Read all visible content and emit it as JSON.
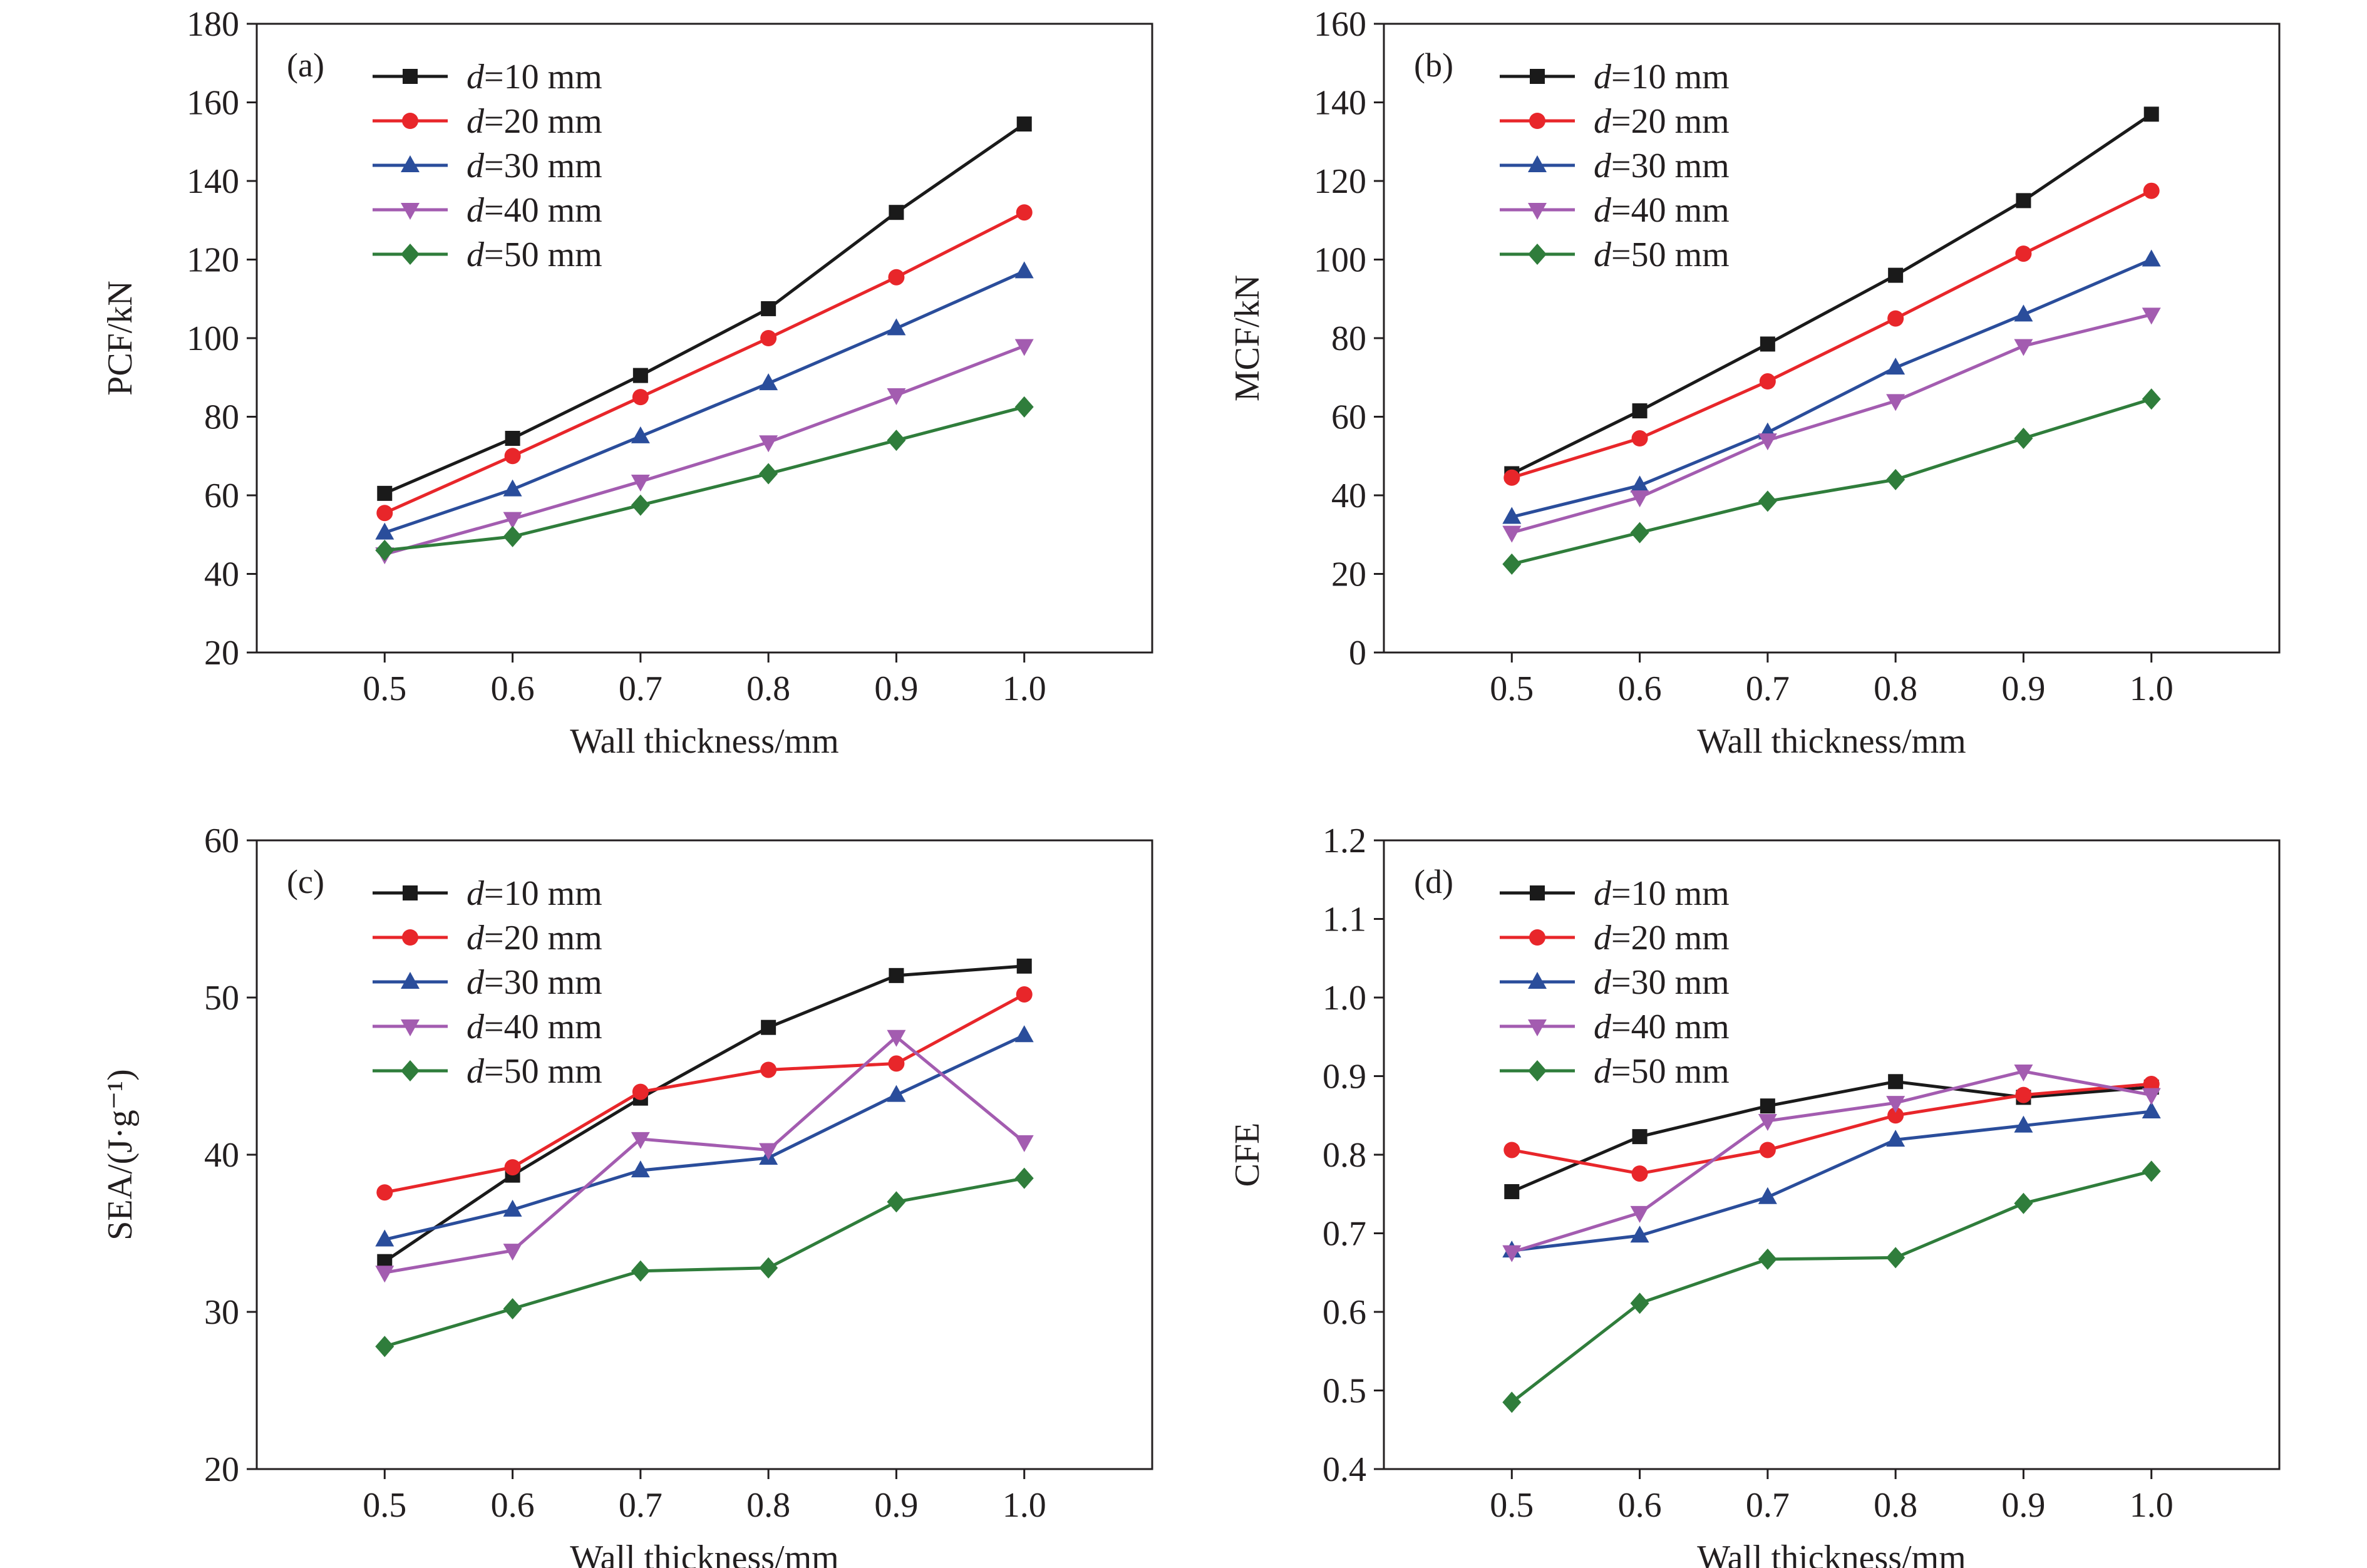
{
  "figure": {
    "series_styles": [
      {
        "color": "#1a1a1a",
        "marker": "square"
      },
      {
        "color": "#e8262a",
        "marker": "circle"
      },
      {
        "color": "#2a4d9b",
        "marker": "triangle-up"
      },
      {
        "color": "#a35cb0",
        "marker": "triangle-down"
      },
      {
        "color": "#2f7d3b",
        "marker": "diamond"
      }
    ]
  },
  "chart_data": [
    {
      "type": "line",
      "panel_label": "(a)",
      "xlabel": "Wall thickness/mm",
      "ylabel": "PCF/kN",
      "x": [
        0.5,
        0.6,
        0.7,
        0.8,
        0.9,
        1.0
      ],
      "x_tick_labels": [
        "0.5",
        "0.6",
        "0.7",
        "0.8",
        "0.9",
        "1.0"
      ],
      "ylim": [
        20,
        180
      ],
      "y_ticks": [
        20,
        40,
        60,
        80,
        100,
        120,
        140,
        160,
        180
      ],
      "y_tick_labels": [
        "20",
        "40",
        "60",
        "80",
        "100",
        "120",
        "140",
        "160",
        "180"
      ],
      "legend_position": "top-left",
      "series": [
        {
          "legend_var": "d",
          "legend_rest": "=10 mm",
          "values": [
            60.5,
            74.5,
            90.5,
            107.5,
            132,
            154.5
          ]
        },
        {
          "legend_var": "d",
          "legend_rest": "=20 mm",
          "values": [
            55.5,
            70,
            85,
            100,
            115.5,
            132
          ]
        },
        {
          "legend_var": "d",
          "legend_rest": "=30 mm",
          "values": [
            50.5,
            61.5,
            75,
            88.5,
            102.5,
            117
          ]
        },
        {
          "legend_var": "d",
          "legend_rest": "=40 mm",
          "values": [
            45,
            54,
            63.5,
            73.5,
            85.5,
            98
          ]
        },
        {
          "legend_var": "d",
          "legend_rest": "=50 mm",
          "values": [
            46,
            49.5,
            57.5,
            65.5,
            74,
            82.5
          ]
        }
      ]
    },
    {
      "type": "line",
      "panel_label": "(b)",
      "xlabel": "Wall thickness/mm",
      "ylabel": "MCF/kN",
      "x": [
        0.5,
        0.6,
        0.7,
        0.8,
        0.9,
        1.0
      ],
      "x_tick_labels": [
        "0.5",
        "0.6",
        "0.7",
        "0.8",
        "0.9",
        "1.0"
      ],
      "ylim": [
        0,
        160
      ],
      "y_ticks": [
        0,
        20,
        40,
        60,
        80,
        100,
        120,
        140,
        160
      ],
      "y_tick_labels": [
        "0",
        "20",
        "40",
        "60",
        "80",
        "100",
        "120",
        "140",
        "160"
      ],
      "legend_position": "top-left",
      "series": [
        {
          "legend_var": "d",
          "legend_rest": "=10 mm",
          "values": [
            45.5,
            61.5,
            78.5,
            96,
            115,
            137
          ]
        },
        {
          "legend_var": "d",
          "legend_rest": "=20 mm",
          "values": [
            44.5,
            54.5,
            69,
            85,
            101.5,
            117.5
          ]
        },
        {
          "legend_var": "d",
          "legend_rest": "=30 mm",
          "values": [
            34.5,
            42.5,
            56,
            72.5,
            86,
            100
          ]
        },
        {
          "legend_var": "d",
          "legend_rest": "=40 mm",
          "values": [
            30.5,
            39.5,
            54,
            64,
            78,
            86
          ]
        },
        {
          "legend_var": "d",
          "legend_rest": "=50 mm",
          "values": [
            22.5,
            30.5,
            38.5,
            44,
            54.5,
            64.5
          ]
        }
      ]
    },
    {
      "type": "line",
      "panel_label": "(c)",
      "xlabel": "Wall thickness/mm",
      "ylabel": "SEA/(J·g⁻¹)",
      "x": [
        0.5,
        0.6,
        0.7,
        0.8,
        0.9,
        1.0
      ],
      "x_tick_labels": [
        "0.5",
        "0.6",
        "0.7",
        "0.8",
        "0.9",
        "1.0"
      ],
      "ylim": [
        20,
        60
      ],
      "y_ticks": [
        20,
        30,
        40,
        50,
        60
      ],
      "y_tick_labels": [
        "20",
        "30",
        "40",
        "50",
        "60"
      ],
      "legend_position": "top-left",
      "series": [
        {
          "legend_var": "d",
          "legend_rest": "=10 mm",
          "values": [
            33.2,
            38.7,
            43.6,
            48.1,
            51.4,
            52
          ]
        },
        {
          "legend_var": "d",
          "legend_rest": "=20 mm",
          "values": [
            37.6,
            39.2,
            44,
            45.4,
            45.8,
            50.2
          ]
        },
        {
          "legend_var": "d",
          "legend_rest": "=30 mm",
          "values": [
            34.6,
            36.5,
            39,
            39.8,
            43.8,
            47.6
          ]
        },
        {
          "legend_var": "d",
          "legend_rest": "=40 mm",
          "values": [
            32.5,
            33.9,
            41,
            40.3,
            47.5,
            40.8
          ]
        },
        {
          "legend_var": "d",
          "legend_rest": "=50 mm",
          "values": [
            27.8,
            30.2,
            32.6,
            32.8,
            37,
            38.5
          ]
        }
      ]
    },
    {
      "type": "line",
      "panel_label": "(d)",
      "xlabel": "Wall thickness/mm",
      "ylabel": "CFE",
      "x": [
        0.5,
        0.6,
        0.7,
        0.8,
        0.9,
        1.0
      ],
      "x_tick_labels": [
        "0.5",
        "0.6",
        "0.7",
        "0.8",
        "0.9",
        "1.0"
      ],
      "ylim": [
        0.4,
        1.2
      ],
      "y_ticks": [
        0.4,
        0.5,
        0.6,
        0.7,
        0.8,
        0.9,
        1.0,
        1.1,
        1.2
      ],
      "y_tick_labels": [
        "0.4",
        "0.5",
        "0.6",
        "0.7",
        "0.8",
        "0.9",
        "1.0",
        "1.1",
        "1.2"
      ],
      "legend_position": "top-left",
      "series": [
        {
          "legend_var": "d",
          "legend_rest": "=10 mm",
          "values": [
            0.753,
            0.823,
            0.862,
            0.893,
            0.873,
            0.886
          ]
        },
        {
          "legend_var": "d",
          "legend_rest": "=20 mm",
          "values": [
            0.806,
            0.776,
            0.806,
            0.85,
            0.876,
            0.89
          ]
        },
        {
          "legend_var": "d",
          "legend_rest": "=30 mm",
          "values": [
            0.678,
            0.697,
            0.746,
            0.819,
            0.837,
            0.855
          ]
        },
        {
          "legend_var": "d",
          "legend_rest": "=40 mm",
          "values": [
            0.676,
            0.726,
            0.843,
            0.866,
            0.906,
            0.876
          ]
        },
        {
          "legend_var": "d",
          "legend_rest": "=50 mm",
          "values": [
            0.485,
            0.611,
            0.667,
            0.669,
            0.738,
            0.779
          ]
        }
      ]
    }
  ]
}
